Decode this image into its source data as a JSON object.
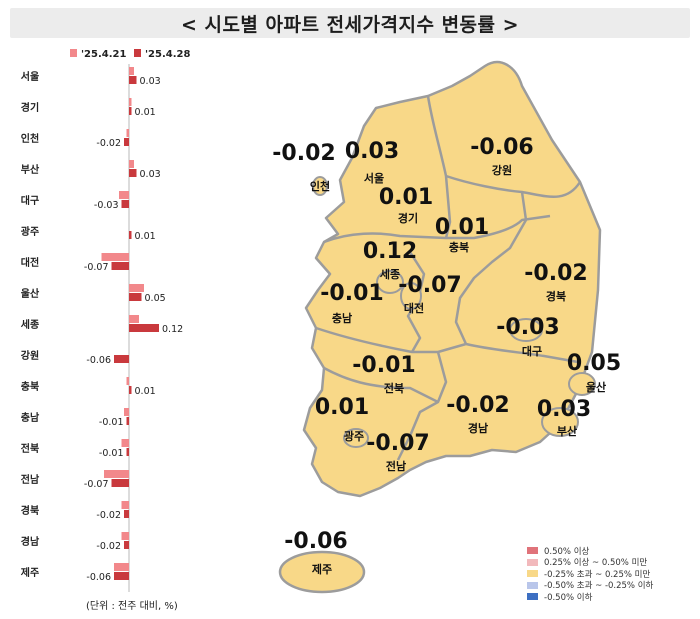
{
  "title": "< 시도별 아파트 전세가격지수 변동률 >",
  "unit_note": "(단위 : 전주 대비, %)",
  "colors": {
    "prev_week": "#f2888b",
    "this_week": "#c9393d",
    "map_fill": "#f8d888",
    "map_stroke": "#9c9c9c",
    "axis": "#b8b8b8"
  },
  "chart_data": {
    "type": "bar",
    "orientation": "horizontal",
    "categories": [
      "서울",
      "경기",
      "인천",
      "부산",
      "대구",
      "광주",
      "대전",
      "울산",
      "세종",
      "강원",
      "충북",
      "충남",
      "전북",
      "전남",
      "경북",
      "경남",
      "제주"
    ],
    "series": [
      {
        "name": "'25.4.21",
        "values": [
          0.02,
          0.01,
          -0.01,
          0.02,
          -0.04,
          0.0,
          -0.11,
          0.06,
          0.04,
          0.0,
          -0.01,
          -0.02,
          -0.03,
          -0.1,
          -0.03,
          -0.03,
          -0.06
        ]
      },
      {
        "name": "'25.4.28",
        "values": [
          0.03,
          0.01,
          -0.02,
          0.03,
          -0.03,
          0.01,
          -0.07,
          0.05,
          0.12,
          -0.06,
          0.01,
          -0.01,
          -0.01,
          -0.07,
          -0.02,
          -0.02,
          -0.06
        ]
      }
    ],
    "data_labels": [
      "0.03",
      "0.01",
      "-0.02",
      "0.03",
      "-0.03",
      "0.01",
      "-0.07",
      "0.05",
      "0.12",
      "-0.06",
      "0.01",
      "-0.01",
      "-0.01",
      "-0.07",
      "-0.02",
      "-0.02",
      "-0.06"
    ],
    "legend_position": "top",
    "grid": false
  },
  "map": {
    "regions": [
      {
        "name": "인천",
        "value": "-0.02"
      },
      {
        "name": "서울",
        "value": "0.03"
      },
      {
        "name": "강원",
        "value": "-0.06"
      },
      {
        "name": "경기",
        "value": "0.01"
      },
      {
        "name": "충북",
        "value": "0.01"
      },
      {
        "name": "세종",
        "value": "0.12"
      },
      {
        "name": "경북",
        "value": "-0.02"
      },
      {
        "name": "충남",
        "value": "-0.01"
      },
      {
        "name": "대전",
        "value": "-0.07"
      },
      {
        "name": "대구",
        "value": "-0.03"
      },
      {
        "name": "울산",
        "value": "0.05"
      },
      {
        "name": "전북",
        "value": "-0.01"
      },
      {
        "name": "광주",
        "value": "0.01"
      },
      {
        "name": "경남",
        "value": "-0.02"
      },
      {
        "name": "부산",
        "value": "0.03"
      },
      {
        "name": "전남",
        "value": "-0.07"
      },
      {
        "name": "제주",
        "value": "-0.06"
      }
    ],
    "legend": [
      {
        "label": "0.50% 이상",
        "color": "#e0737a"
      },
      {
        "label": "0.25% 이상 ~ 0.50% 미만",
        "color": "#f2b9bc"
      },
      {
        "label": "-0.25% 초과 ~ 0.25% 미만",
        "color": "#f8d888"
      },
      {
        "label": "-0.50% 초과 ~ -0.25% 이하",
        "color": "#b9c6ea"
      },
      {
        "label": "-0.50% 이하",
        "color": "#3d6fc2"
      }
    ]
  }
}
